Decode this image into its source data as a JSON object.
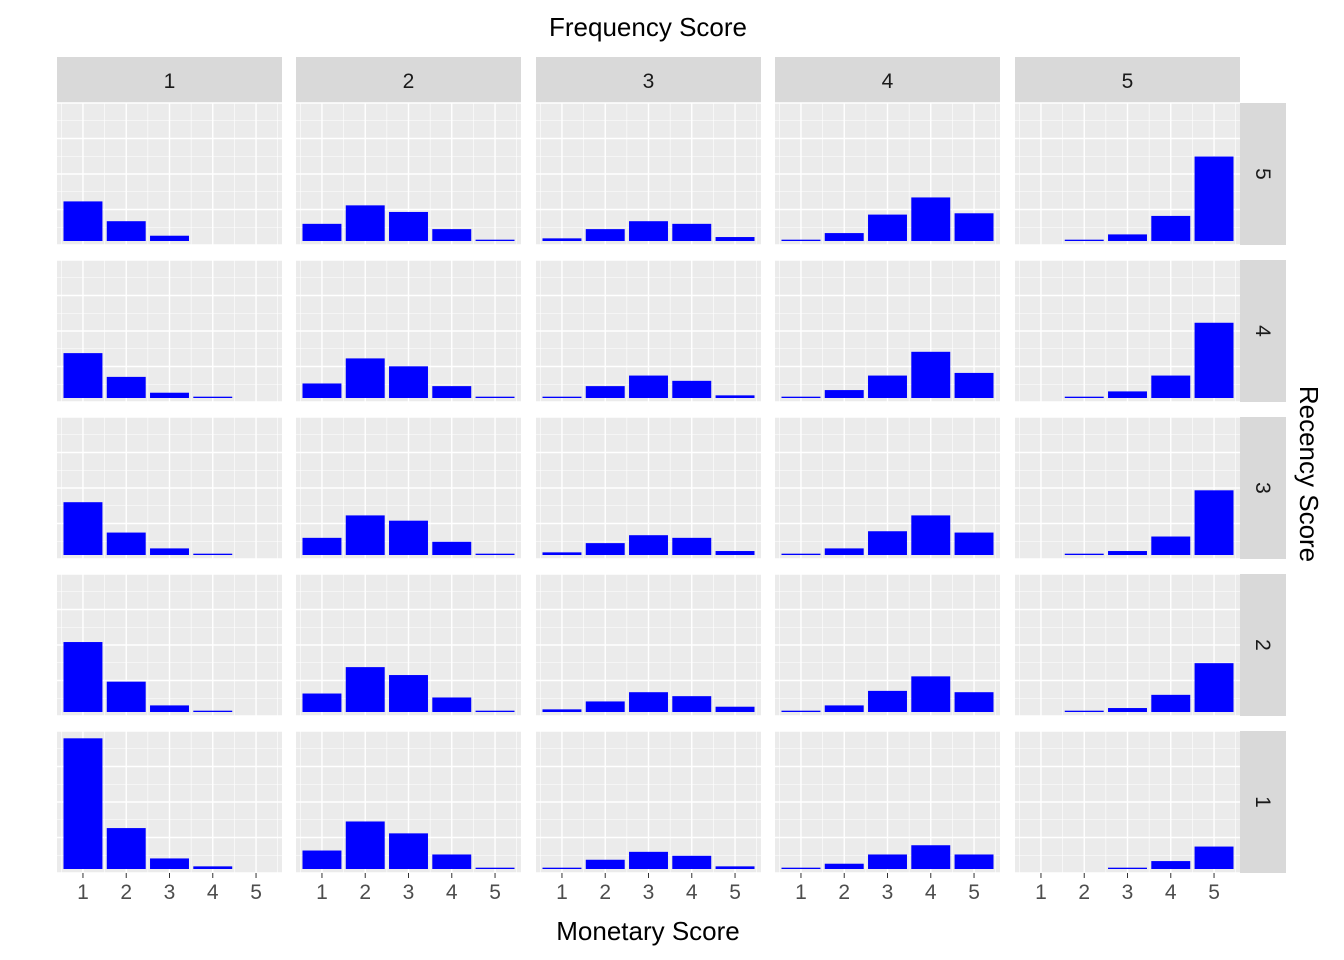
{
  "chart_data": {
    "type": "bar",
    "facet_layout": "grid",
    "top_title": "Frequency Score",
    "xlabel": "Monetary Score",
    "right_title": "Recency Score",
    "col_labels": [
      "1",
      "2",
      "3",
      "4",
      "5"
    ],
    "row_labels": [
      "5",
      "4",
      "3",
      "2",
      "1"
    ],
    "categories": [
      "1",
      "2",
      "3",
      "4",
      "5"
    ],
    "ylim": [
      0,
      1.0
    ],
    "grid": true,
    "bar_color": "#0000ff",
    "panel_background": "#ebebeb",
    "strip_background": "#d9d9d9",
    "gridline_color": "#ffffff",
    "panels": [
      {
        "recency": "5",
        "frequency": "1",
        "values": [
          0.3,
          0.15,
          0.04,
          0,
          0
        ]
      },
      {
        "recency": "5",
        "frequency": "2",
        "values": [
          0.13,
          0.27,
          0.22,
          0.09,
          0.01
        ]
      },
      {
        "recency": "5",
        "frequency": "3",
        "values": [
          0.02,
          0.09,
          0.15,
          0.13,
          0.03
        ]
      },
      {
        "recency": "5",
        "frequency": "4",
        "values": [
          0.01,
          0.06,
          0.2,
          0.33,
          0.21
        ]
      },
      {
        "recency": "5",
        "frequency": "5",
        "values": [
          0,
          0.01,
          0.05,
          0.19,
          0.64
        ]
      },
      {
        "recency": "4",
        "frequency": "1",
        "values": [
          0.34,
          0.16,
          0.04,
          0.01,
          0
        ]
      },
      {
        "recency": "4",
        "frequency": "2",
        "values": [
          0.11,
          0.3,
          0.24,
          0.09,
          0.01
        ]
      },
      {
        "recency": "4",
        "frequency": "3",
        "values": [
          0.01,
          0.09,
          0.17,
          0.13,
          0.02
        ]
      },
      {
        "recency": "4",
        "frequency": "4",
        "values": [
          0.01,
          0.06,
          0.17,
          0.35,
          0.19
        ]
      },
      {
        "recency": "4",
        "frequency": "5",
        "values": [
          0,
          0.01,
          0.05,
          0.17,
          0.57
        ]
      },
      {
        "recency": "3",
        "frequency": "1",
        "values": [
          0.4,
          0.17,
          0.05,
          0.01,
          0
        ]
      },
      {
        "recency": "3",
        "frequency": "2",
        "values": [
          0.13,
          0.3,
          0.26,
          0.1,
          0.01
        ]
      },
      {
        "recency": "3",
        "frequency": "3",
        "values": [
          0.02,
          0.09,
          0.15,
          0.13,
          0.03
        ]
      },
      {
        "recency": "3",
        "frequency": "4",
        "values": [
          0.01,
          0.05,
          0.18,
          0.3,
          0.17
        ]
      },
      {
        "recency": "3",
        "frequency": "5",
        "values": [
          0,
          0.01,
          0.03,
          0.14,
          0.49
        ]
      },
      {
        "recency": "2",
        "frequency": "1",
        "values": [
          0.53,
          0.23,
          0.05,
          0.01,
          0
        ]
      },
      {
        "recency": "2",
        "frequency": "2",
        "values": [
          0.14,
          0.34,
          0.28,
          0.11,
          0.01
        ]
      },
      {
        "recency": "2",
        "frequency": "3",
        "values": [
          0.02,
          0.08,
          0.15,
          0.12,
          0.04
        ]
      },
      {
        "recency": "2",
        "frequency": "4",
        "values": [
          0.01,
          0.05,
          0.16,
          0.27,
          0.15
        ]
      },
      {
        "recency": "2",
        "frequency": "5",
        "values": [
          0,
          0.01,
          0.03,
          0.13,
          0.37
        ]
      },
      {
        "recency": "1",
        "frequency": "1",
        "values": [
          0.99,
          0.31,
          0.08,
          0.02,
          0
        ]
      },
      {
        "recency": "1",
        "frequency": "2",
        "values": [
          0.14,
          0.36,
          0.27,
          0.11,
          0.01
        ]
      },
      {
        "recency": "1",
        "frequency": "3",
        "values": [
          0.01,
          0.07,
          0.13,
          0.1,
          0.02
        ]
      },
      {
        "recency": "1",
        "frequency": "4",
        "values": [
          0.01,
          0.04,
          0.11,
          0.18,
          0.11
        ]
      },
      {
        "recency": "1",
        "frequency": "5",
        "values": [
          0,
          0,
          0.01,
          0.06,
          0.17
        ]
      }
    ]
  }
}
